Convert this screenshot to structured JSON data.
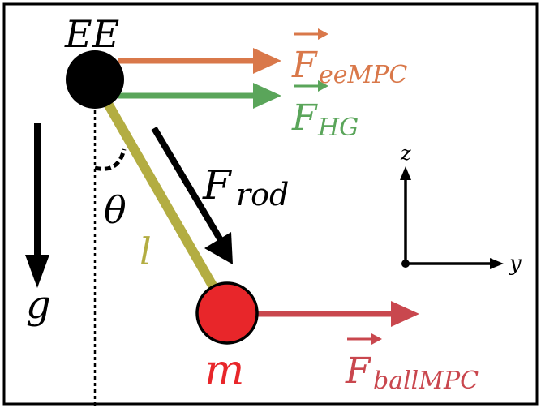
{
  "labels": {
    "end_effector": "EE",
    "gravity": "g",
    "angle": "θ",
    "rod_length": "l",
    "mass": "m",
    "rod_force_main": "F",
    "rod_force_sub": "rod",
    "force_ee_mpc_main": "F",
    "force_ee_mpc_sub": "eeMPC",
    "force_hg_main": "F",
    "force_hg_sub": "HG",
    "force_ball_mpc_main": "F",
    "force_ball_mpc_sub": "ballMPC",
    "axis_z": "z",
    "axis_y": "y"
  },
  "colors": {
    "ee_mpc_force": "#d9784a",
    "hg_force": "#5aa55a",
    "ball_mpc_force": "#c9474e",
    "rod": "#b3ad42",
    "mass_ball": "#e8262a",
    "end_effector": "#000000",
    "frame_border": "#000000"
  }
}
